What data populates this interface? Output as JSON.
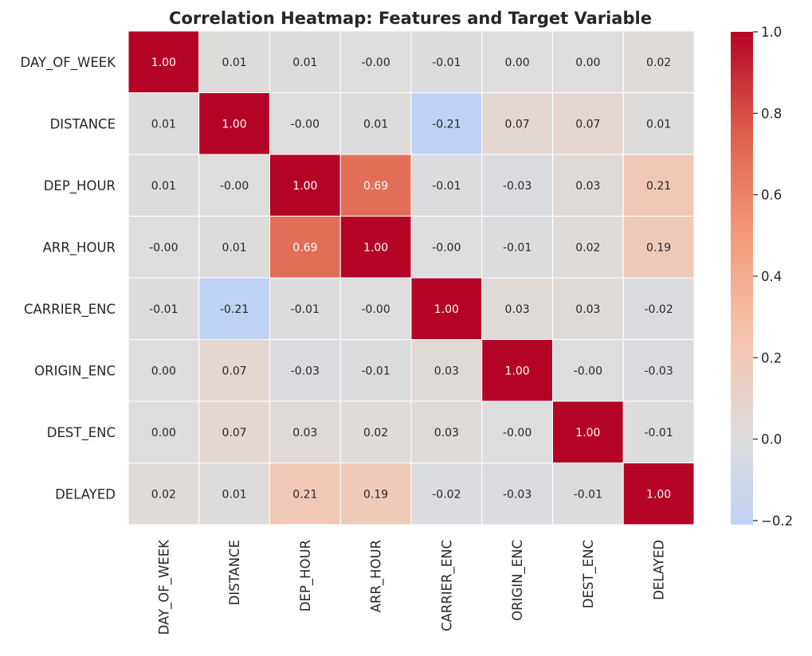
{
  "chart_data": {
    "type": "heatmap",
    "title": "Correlation Heatmap: Features and Target Variable",
    "row_labels": [
      "DAY_OF_WEEK",
      "DISTANCE",
      "DEP_HOUR",
      "ARR_HOUR",
      "CARRIER_ENC",
      "ORIGIN_ENC",
      "DEST_ENC",
      "DELAYED"
    ],
    "col_labels": [
      "DAY_OF_WEEK",
      "DISTANCE",
      "DEP_HOUR",
      "ARR_HOUR",
      "CARRIER_ENC",
      "ORIGIN_ENC",
      "DEST_ENC",
      "DELAYED"
    ],
    "annotations": [
      [
        "1.00",
        "0.01",
        "0.01",
        "-0.00",
        "-0.01",
        "0.00",
        "0.00",
        "0.02"
      ],
      [
        "0.01",
        "1.00",
        "-0.00",
        "0.01",
        "-0.21",
        "0.07",
        "0.07",
        "0.01"
      ],
      [
        "0.01",
        "-0.00",
        "1.00",
        "0.69",
        "-0.01",
        "-0.03",
        "0.03",
        "0.21"
      ],
      [
        "-0.00",
        "0.01",
        "0.69",
        "1.00",
        "-0.00",
        "-0.01",
        "0.02",
        "0.19"
      ],
      [
        "-0.01",
        "-0.21",
        "-0.01",
        "-0.00",
        "1.00",
        "0.03",
        "0.03",
        "-0.02"
      ],
      [
        "0.00",
        "0.07",
        "-0.03",
        "-0.01",
        "0.03",
        "1.00",
        "-0.00",
        "-0.03"
      ],
      [
        "0.00",
        "0.07",
        "0.03",
        "0.02",
        "0.03",
        "-0.00",
        "1.00",
        "-0.01"
      ],
      [
        "0.02",
        "0.01",
        "0.21",
        "0.19",
        "-0.02",
        "-0.03",
        "-0.01",
        "1.00"
      ]
    ],
    "colormap": "coolwarm",
    "center": 0,
    "colorbar": {
      "range": [
        -0.21,
        1.0
      ],
      "ticks": [
        -0.2,
        0.0,
        0.2,
        0.4,
        0.6,
        0.8,
        1.0
      ],
      "tick_labels": [
        "−0.2",
        "0.0",
        "0.2",
        "0.4",
        "0.6",
        "0.8",
        "1.0"
      ]
    },
    "grid": false,
    "legend": "colorbar-right"
  }
}
